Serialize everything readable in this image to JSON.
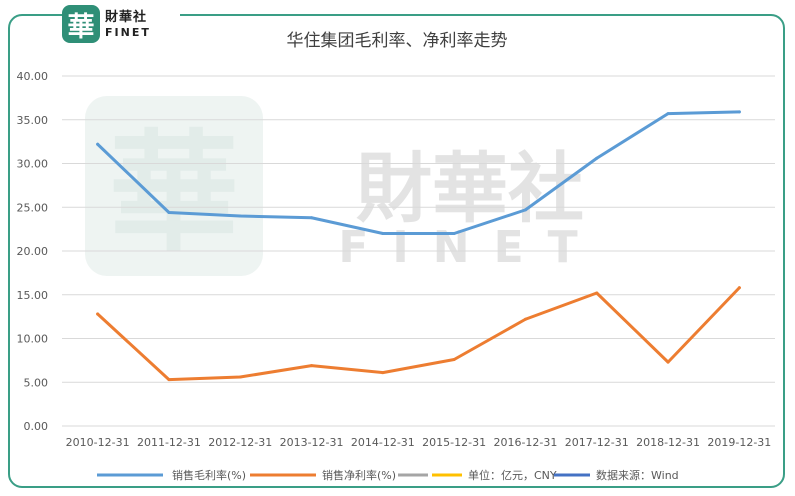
{
  "logo": {
    "mark": "華",
    "cn": "財華社",
    "en": "FINET"
  },
  "watermark": {
    "mark": "華",
    "cn": "財華社",
    "en": "FINET"
  },
  "colors": {
    "gross": "#5b9bd5",
    "net": "#ed7d31",
    "unit": "#a5a5a5",
    "source": "#ffc000",
    "source2": "#4472c4",
    "frame": "#3a9e86"
  },
  "chart_data": {
    "type": "line",
    "title": "华住集团毛利率、净利率走势",
    "categories": [
      "2010-12-31",
      "2011-12-31",
      "2012-12-31",
      "2013-12-31",
      "2014-12-31",
      "2015-12-31",
      "2016-12-31",
      "2017-12-31",
      "2018-12-31",
      "2019-12-31"
    ],
    "ylim": [
      0,
      40
    ],
    "yticks": [
      "0.00",
      "5.00",
      "10.00",
      "15.00",
      "20.00",
      "25.00",
      "30.00",
      "35.00",
      "40.00"
    ],
    "grid": true,
    "legend_position": "bottom",
    "series": [
      {
        "name": "销售毛利率(%)",
        "values": [
          32.2,
          24.4,
          24.0,
          23.8,
          22.0,
          22.0,
          24.7,
          30.6,
          35.7,
          35.9
        ]
      },
      {
        "name": "销售净利率(%)",
        "values": [
          12.8,
          5.3,
          5.6,
          6.9,
          6.1,
          7.6,
          12.2,
          15.2,
          7.3,
          15.8
        ]
      }
    ],
    "extra_legend": [
      "单位：亿元，CNY",
      "数据来源：Wind"
    ]
  }
}
